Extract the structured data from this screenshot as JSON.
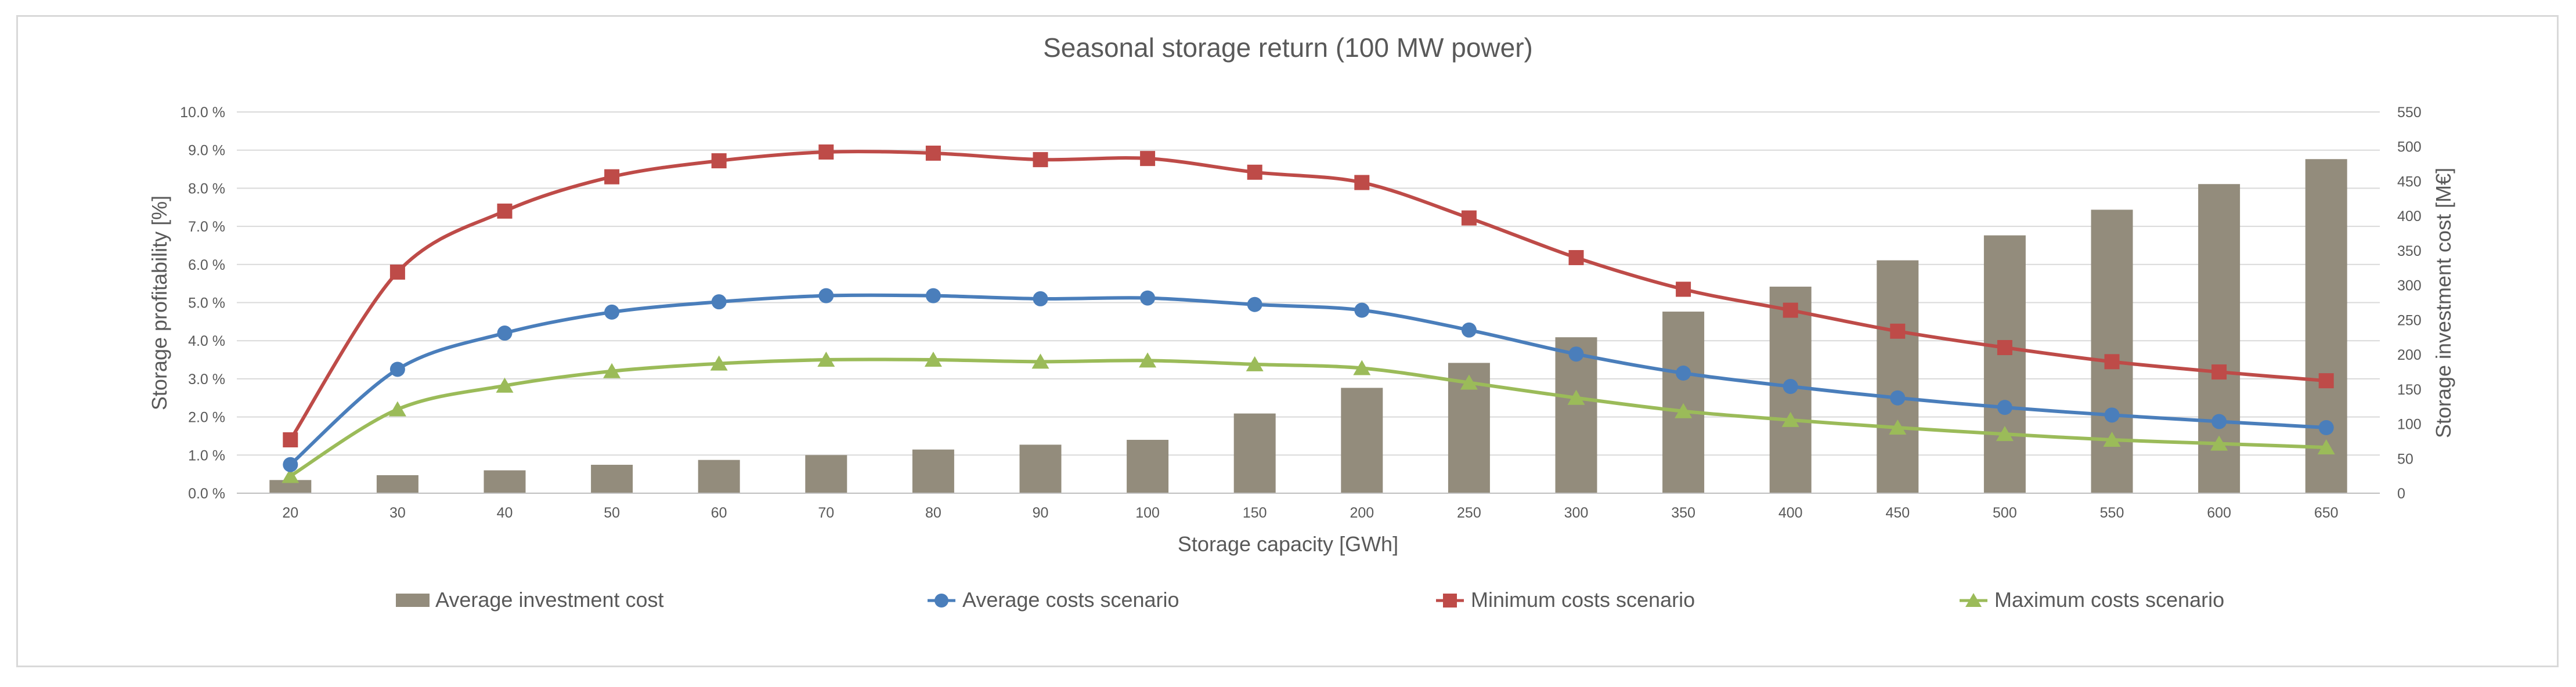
{
  "chart_data": {
    "type": "bar+line",
    "title": "Seasonal storage return (100 MW power)",
    "xlabel": "Storage capacity [GWh]",
    "ylabel_left": "Storage profitability [%]",
    "ylabel_right": "Storage investment cost [M€]",
    "categories": [
      "20",
      "30",
      "40",
      "50",
      "60",
      "70",
      "80",
      "90",
      "100",
      "150",
      "200",
      "250",
      "300",
      "350",
      "400",
      "450",
      "500",
      "550",
      "600",
      "650"
    ],
    "ylim_left": [
      0,
      10
    ],
    "ylim_right": [
      0,
      550
    ],
    "left_ticks": [
      "0.0 %",
      "1.0 %",
      "2.0 %",
      "3.0 %",
      "4.0 %",
      "5.0 %",
      "6.0 %",
      "7.0 %",
      "8.0 %",
      "9.0 %",
      "10.0 %"
    ],
    "right_ticks": [
      "0",
      "50",
      "100",
      "150",
      "200",
      "250",
      "300",
      "350",
      "400",
      "450",
      "500",
      "550"
    ],
    "grid": true,
    "legend_position": "bottom",
    "bars": {
      "name": "Average investment cost",
      "axis": "right",
      "color": "#938c7c",
      "values": [
        19,
        26,
        33,
        41,
        48,
        55,
        63,
        70,
        77,
        115,
        152,
        188,
        225,
        262,
        298,
        336,
        372,
        409,
        446,
        482
      ]
    },
    "series": [
      {
        "name": "Average costs scenario",
        "axis": "left",
        "color": "#4a7ebb",
        "marker": "circle",
        "values": [
          0.75,
          3.25,
          4.2,
          4.75,
          5.02,
          5.18,
          5.18,
          5.1,
          5.12,
          4.95,
          4.8,
          4.28,
          3.65,
          3.15,
          2.8,
          2.5,
          2.25,
          2.05,
          1.88,
          1.72
        ]
      },
      {
        "name": "Minimum costs scenario",
        "axis": "left",
        "color": "#be4b48",
        "marker": "square",
        "values": [
          1.4,
          5.8,
          7.4,
          8.3,
          8.72,
          8.95,
          8.92,
          8.75,
          8.78,
          8.42,
          8.15,
          7.22,
          6.18,
          5.35,
          4.8,
          4.25,
          3.82,
          3.45,
          3.18,
          2.95
        ]
      },
      {
        "name": "Maximum costs scenario",
        "axis": "left",
        "color": "#9bbb59",
        "marker": "triangle",
        "values": [
          0.45,
          2.2,
          2.82,
          3.2,
          3.4,
          3.5,
          3.5,
          3.45,
          3.48,
          3.38,
          3.28,
          2.9,
          2.5,
          2.15,
          1.92,
          1.72,
          1.55,
          1.4,
          1.3,
          1.2
        ]
      }
    ]
  }
}
